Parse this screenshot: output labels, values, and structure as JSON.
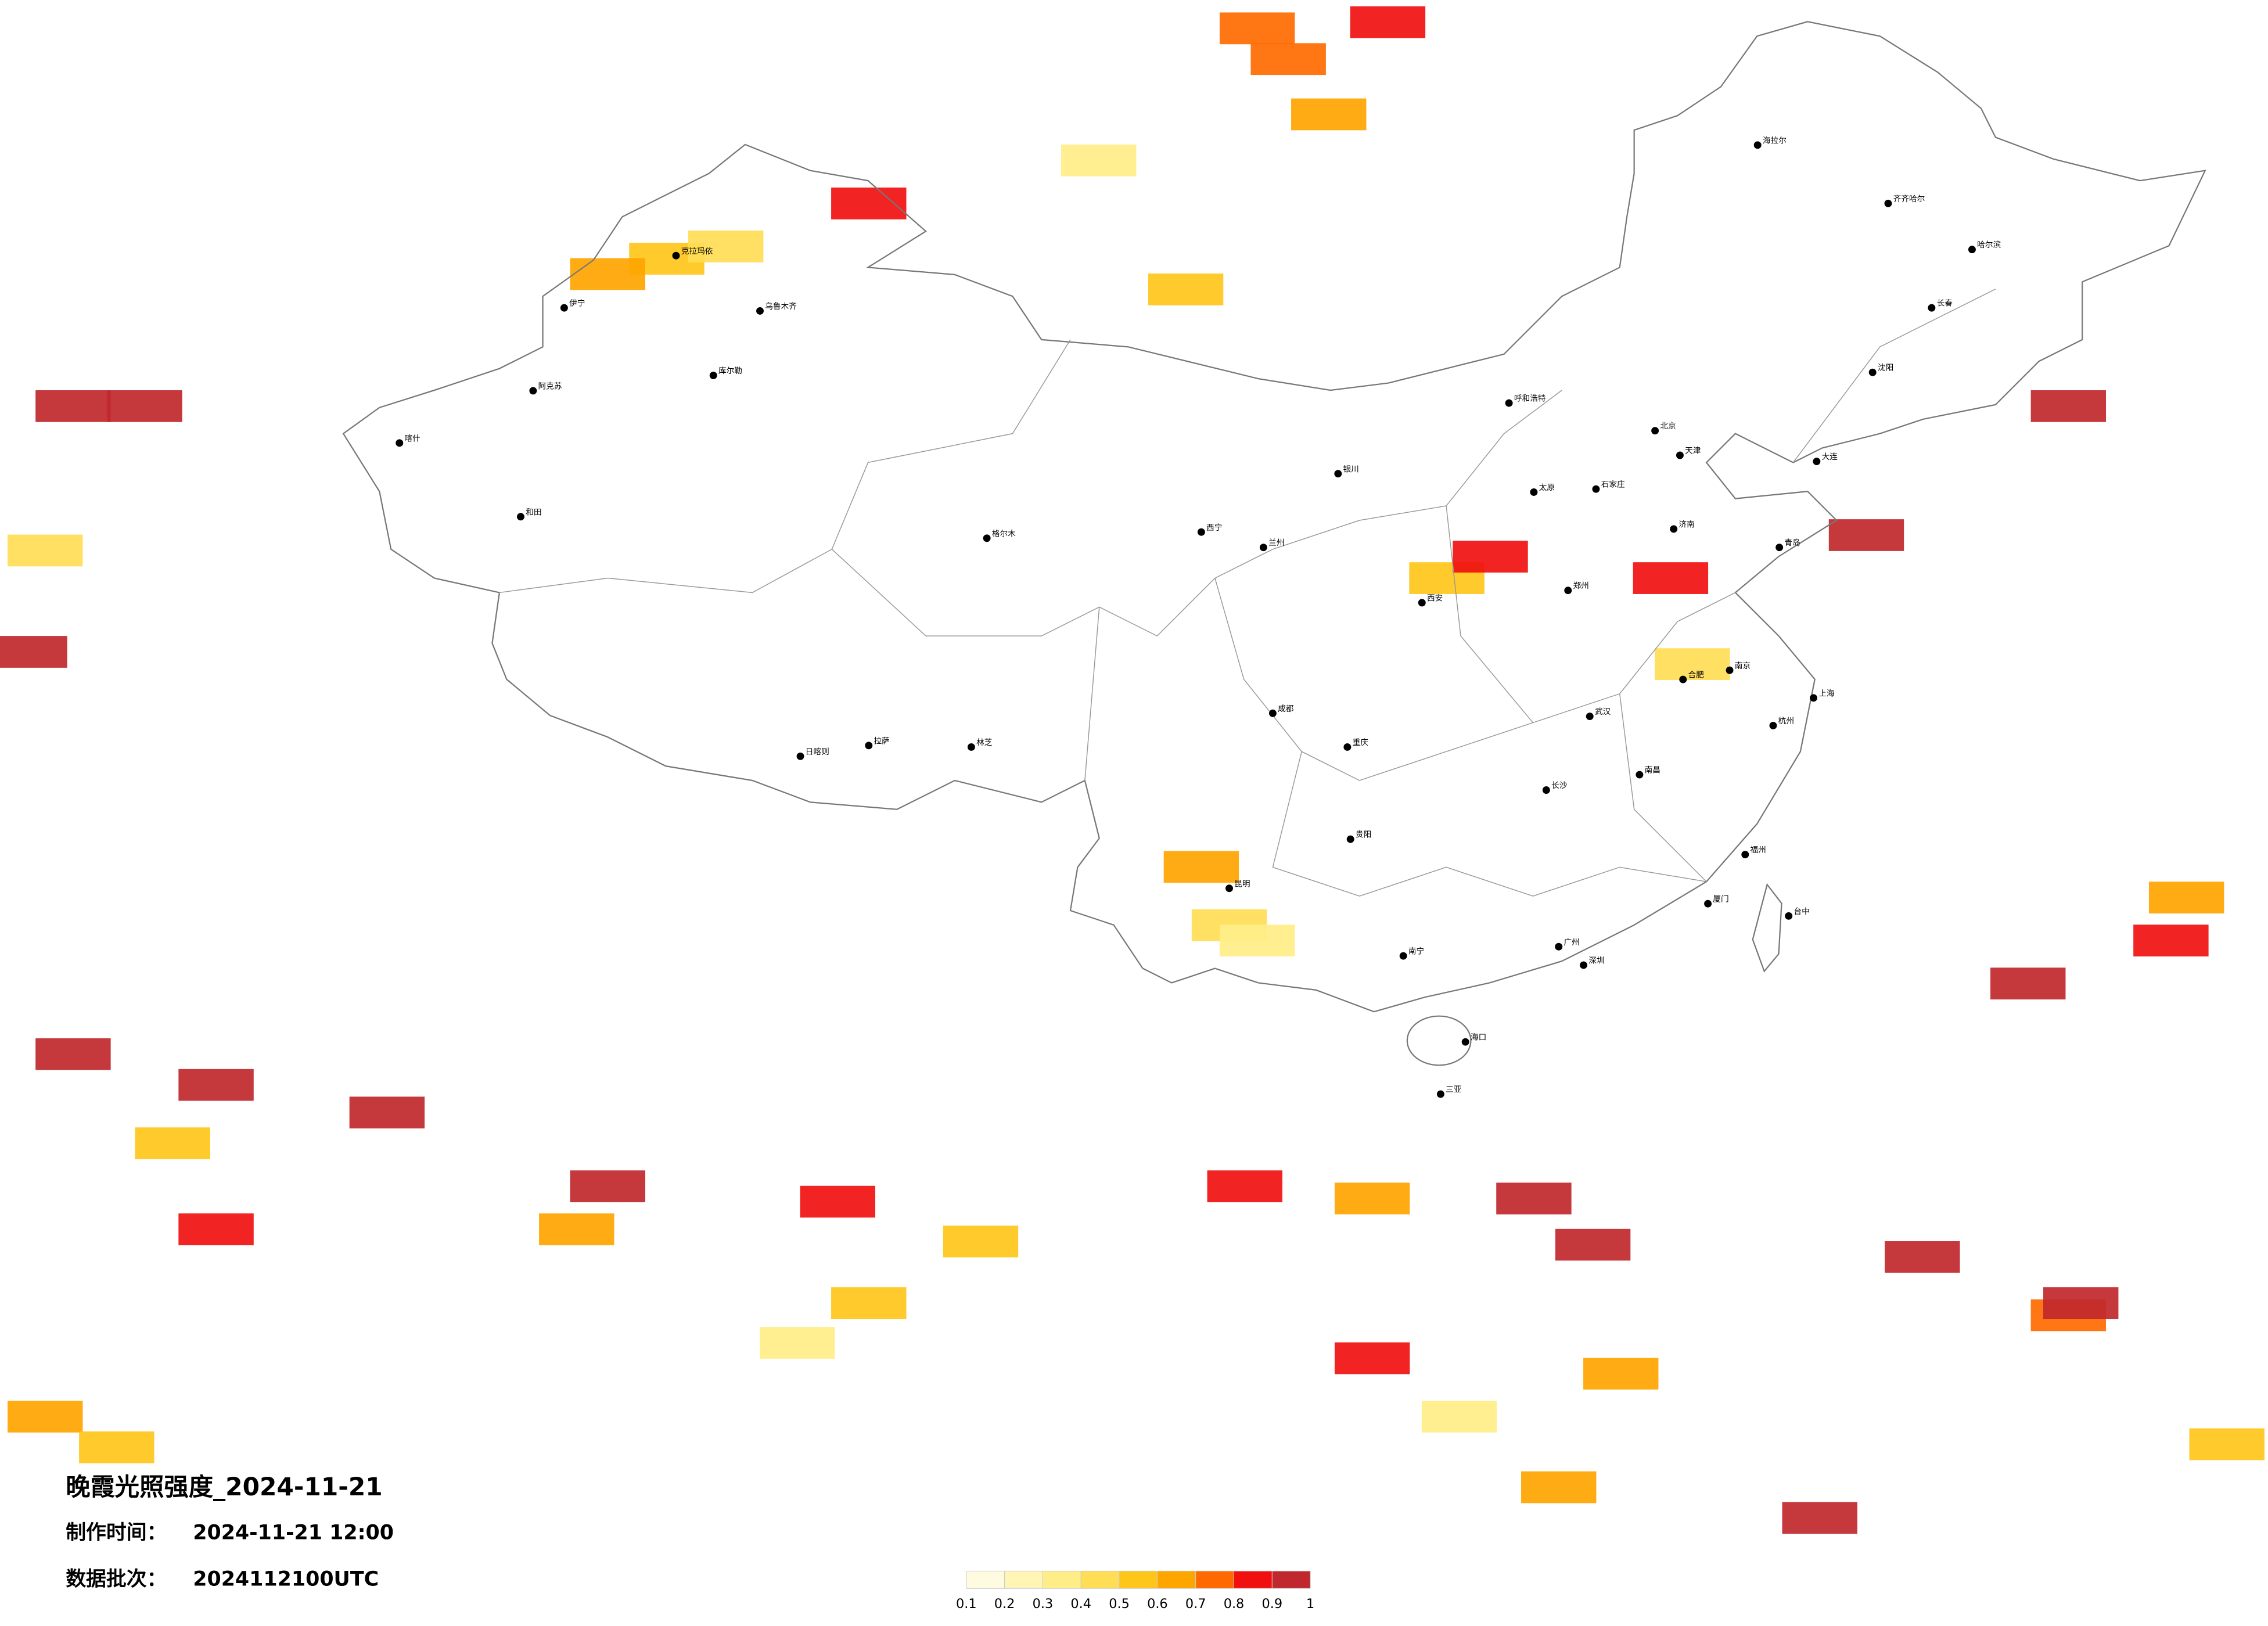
{
  "title": "晚霞光照强度_2024-11-21",
  "made_label": "制作时间：",
  "made_time": "2024-11-21 12:00",
  "batch_label": "数据批次：",
  "batch": "2024112100UTC",
  "legend": {
    "ticks": [
      0.1,
      0.2,
      0.3,
      0.4,
      0.5,
      0.6,
      0.7,
      0.8,
      0.9,
      1
    ],
    "colors": [
      "#fffbe0",
      "#fff5b5",
      "#ffee88",
      "#ffdd55",
      "#ffc61a",
      "#ffa500",
      "#ff6a00",
      "#f01010",
      "#c0282d"
    ]
  },
  "patches": [
    {
      "lon": 104.6,
      "lat": 52.0,
      "value": 0.7
    },
    {
      "lon": 103.6,
      "lat": 53.0,
      "value": 0.7
    },
    {
      "lon": 105.9,
      "lat": 50.2,
      "value": 0.65
    },
    {
      "lon": 107.8,
      "lat": 53.2,
      "value": 0.8
    },
    {
      "lon": 84.6,
      "lat": 45.5,
      "value": 0.5
    },
    {
      "lon": 86.5,
      "lat": 45.9,
      "value": 0.4
    },
    {
      "lon": 91.1,
      "lat": 47.3,
      "value": 0.8
    },
    {
      "lon": 82.7,
      "lat": 45.0,
      "value": 0.6
    },
    {
      "lon": 65.5,
      "lat": 40.7,
      "value": 0.9
    },
    {
      "lon": 67.8,
      "lat": 40.7,
      "value": 0.9
    },
    {
      "lon": 64.1,
      "lat": 32.7,
      "value": 0.9
    },
    {
      "lon": 64.6,
      "lat": 36.0,
      "value": 0.4
    },
    {
      "lon": 101.3,
      "lat": 44.5,
      "value": 0.5
    },
    {
      "lon": 98.5,
      "lat": 48.7,
      "value": 0.3
    },
    {
      "lon": 109.7,
      "lat": 35.1,
      "value": 0.5
    },
    {
      "lon": 111.1,
      "lat": 35.8,
      "value": 0.8
    },
    {
      "lon": 117.6,
      "lat": 32.3,
      "value": 0.4
    },
    {
      "lon": 116.9,
      "lat": 35.1,
      "value": 0.8
    },
    {
      "lon": 101.8,
      "lat": 25.7,
      "value": 0.6
    },
    {
      "lon": 102.7,
      "lat": 23.8,
      "value": 0.4
    },
    {
      "lon": 103.6,
      "lat": 23.3,
      "value": 0.3
    },
    {
      "lon": 129.7,
      "lat": 40.7,
      "value": 0.9
    },
    {
      "lon": 123.2,
      "lat": 36.5,
      "value": 0.9
    },
    {
      "lon": 128.4,
      "lat": 21.9,
      "value": 0.9
    },
    {
      "lon": 133.0,
      "lat": 23.3,
      "value": 0.8
    },
    {
      "lon": 133.5,
      "lat": 24.7,
      "value": 0.6
    },
    {
      "lon": 70.1,
      "lat": 18.6,
      "value": 0.9
    },
    {
      "lon": 65.5,
      "lat": 19.6,
      "value": 0.9
    },
    {
      "lon": 68.7,
      "lat": 16.7,
      "value": 0.5
    },
    {
      "lon": 75.6,
      "lat": 17.7,
      "value": 0.9
    },
    {
      "lon": 70.1,
      "lat": 13.9,
      "value": 0.8
    },
    {
      "lon": 82.7,
      "lat": 15.3,
      "value": 0.9
    },
    {
      "lon": 81.7,
      "lat": 13.9,
      "value": 0.6
    },
    {
      "lon": 90.1,
      "lat": 14.8,
      "value": 0.8
    },
    {
      "lon": 91.1,
      "lat": 11.5,
      "value": 0.5
    },
    {
      "lon": 88.8,
      "lat": 10.2,
      "value": 0.3
    },
    {
      "lon": 103.2,
      "lat": 15.3,
      "value": 0.8
    },
    {
      "lon": 107.3,
      "lat": 14.9,
      "value": 0.6
    },
    {
      "lon": 112.5,
      "lat": 14.9,
      "value": 0.9
    },
    {
      "lon": 114.4,
      "lat": 13.4,
      "value": 0.9
    },
    {
      "lon": 115.3,
      "lat": 9.2,
      "value": 0.6
    },
    {
      "lon": 107.3,
      "lat": 9.7,
      "value": 0.8
    },
    {
      "lon": 110.1,
      "lat": 7.8,
      "value": 0.3
    },
    {
      "lon": 129.7,
      "lat": 11.1,
      "value": 0.7
    },
    {
      "lon": 130.1,
      "lat": 11.5,
      "value": 0.9
    },
    {
      "lon": 121.7,
      "lat": 4.5,
      "value": 0.9
    },
    {
      "lon": 113.3,
      "lat": 5.5,
      "value": 0.6
    },
    {
      "lon": 64.6,
      "lat": 7.8,
      "value": 0.6
    },
    {
      "lon": 66.9,
      "lat": 6.8,
      "value": 0.5
    },
    {
      "lon": 134.8,
      "lat": 6.9,
      "value": 0.5
    },
    {
      "lon": 125.0,
      "lat": 13.0,
      "value": 0.9
    },
    {
      "lon": 94.7,
      "lat": 13.5,
      "value": 0.5
    }
  ],
  "cities": [
    {
      "name": "北京",
      "lon": 116.4,
      "lat": 39.9
    },
    {
      "name": "天津",
      "lon": 117.2,
      "lat": 39.1
    },
    {
      "name": "上海",
      "lon": 121.5,
      "lat": 31.2
    },
    {
      "name": "重庆",
      "lon": 106.5,
      "lat": 29.6
    },
    {
      "name": "成都",
      "lon": 104.1,
      "lat": 30.7
    },
    {
      "name": "拉萨",
      "lon": 91.1,
      "lat": 29.65
    },
    {
      "name": "乌鲁木齐",
      "lon": 87.6,
      "lat": 43.8
    },
    {
      "name": "哈尔滨",
      "lon": 126.6,
      "lat": 45.8
    },
    {
      "name": "长春",
      "lon": 125.3,
      "lat": 43.9
    },
    {
      "name": "沈阳",
      "lon": 123.4,
      "lat": 41.8
    },
    {
      "name": "广州",
      "lon": 113.3,
      "lat": 23.1
    },
    {
      "name": "深圳",
      "lon": 114.1,
      "lat": 22.5
    },
    {
      "name": "南京",
      "lon": 118.8,
      "lat": 32.1
    },
    {
      "name": "杭州",
      "lon": 120.2,
      "lat": 30.3
    },
    {
      "name": "武汉",
      "lon": 114.3,
      "lat": 30.6
    },
    {
      "name": "长沙",
      "lon": 112.9,
      "lat": 28.2
    },
    {
      "name": "西安",
      "lon": 108.9,
      "lat": 34.3
    },
    {
      "name": "兰州",
      "lon": 103.8,
      "lat": 36.1
    },
    {
      "name": "西宁",
      "lon": 101.8,
      "lat": 36.6
    },
    {
      "name": "银川",
      "lon": 106.2,
      "lat": 38.5
    },
    {
      "name": "呼和浩特",
      "lon": 111.7,
      "lat": 40.8
    },
    {
      "name": "昆明",
      "lon": 102.7,
      "lat": 25.0
    },
    {
      "name": "贵阳",
      "lon": 106.6,
      "lat": 26.6
    },
    {
      "name": "南宁",
      "lon": 108.3,
      "lat": 22.8
    },
    {
      "name": "福州",
      "lon": 119.3,
      "lat": 26.1
    },
    {
      "name": "海口",
      "lon": 110.3,
      "lat": 20.0
    },
    {
      "name": "石家庄",
      "lon": 114.5,
      "lat": 38.0
    },
    {
      "name": "太原",
      "lon": 112.5,
      "lat": 37.9
    },
    {
      "name": "郑州",
      "lon": 113.6,
      "lat": 34.7
    },
    {
      "name": "济南",
      "lon": 117.0,
      "lat": 36.7
    },
    {
      "name": "合肥",
      "lon": 117.3,
      "lat": 31.8
    },
    {
      "name": "南昌",
      "lon": 115.9,
      "lat": 28.7
    },
    {
      "name": "喀什",
      "lon": 76.0,
      "lat": 39.5
    },
    {
      "name": "和田",
      "lon": 79.9,
      "lat": 37.1
    },
    {
      "name": "阿克苏",
      "lon": 80.3,
      "lat": 41.2
    },
    {
      "name": "库尔勒",
      "lon": 86.1,
      "lat": 41.7
    },
    {
      "name": "格尔木",
      "lon": 94.9,
      "lat": 36.4
    },
    {
      "name": "日喀则",
      "lon": 88.9,
      "lat": 29.3
    },
    {
      "name": "林芝",
      "lon": 94.4,
      "lat": 29.6
    },
    {
      "name": "齐齐哈尔",
      "lon": 123.9,
      "lat": 47.3
    },
    {
      "name": "海拉尔",
      "lon": 119.7,
      "lat": 49.2
    },
    {
      "name": "大连",
      "lon": 121.6,
      "lat": 38.9
    },
    {
      "name": "青岛",
      "lon": 120.4,
      "lat": 36.1
    },
    {
      "name": "厦门",
      "lon": 118.1,
      "lat": 24.5
    },
    {
      "name": "三亚",
      "lon": 109.5,
      "lat": 18.3
    },
    {
      "name": "台中",
      "lon": 120.7,
      "lat": 24.1
    },
    {
      "name": "伊宁",
      "lon": 81.3,
      "lat": 43.9
    },
    {
      "name": "克拉玛依",
      "lon": 84.9,
      "lat": 45.6
    }
  ]
}
